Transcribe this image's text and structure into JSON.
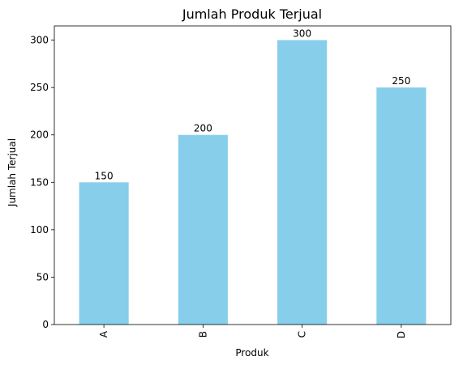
{
  "chart_data": {
    "type": "bar",
    "title": "Jumlah Produk Terjual",
    "xlabel": "Produk",
    "ylabel": "Jumlah Terjual",
    "categories": [
      "A",
      "B",
      "C",
      "D"
    ],
    "values": [
      150,
      200,
      300,
      250
    ],
    "data_labels": [
      "150",
      "200",
      "300",
      "250"
    ],
    "ylim": [
      0,
      315
    ],
    "yticks": [
      0,
      50,
      100,
      150,
      200,
      250,
      300
    ],
    "ytick_labels": [
      "0",
      "50",
      "100",
      "150",
      "200",
      "250",
      "300"
    ],
    "x_tick_rotation": "vertical",
    "grid": false,
    "legend": "none",
    "bar_color": "#87ceeb"
  }
}
